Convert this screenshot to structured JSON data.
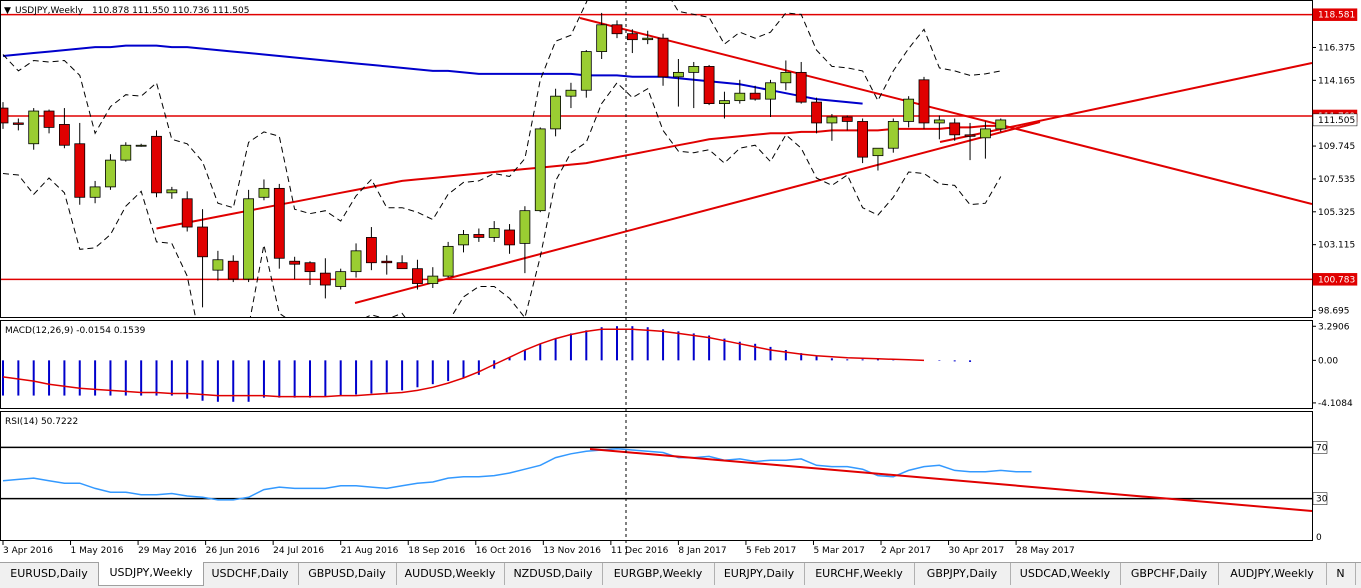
{
  "window": {
    "title": "USDJPY,Weekly",
    "ohlc": "110.878 111.550 110.736 111.505"
  },
  "indicators": {
    "macd_label": "MACD(12,26,9) -0.0154 0.1539",
    "rsi_label": "RSI(14) 50.7222"
  },
  "price_scale": {
    "labels": [
      "116.375",
      "114.165",
      "109.745",
      "107.535",
      "105.325",
      "103.115",
      "98.695"
    ],
    "badges": [
      {
        "text": "118.581",
        "price": 118.581,
        "color": "#e00000"
      },
      {
        "text": "111.769",
        "price": 111.769,
        "color": "#e00000"
      },
      {
        "text": "111.505",
        "price": 111.505,
        "color": "#ffffff"
      },
      {
        "text": "100.783",
        "price": 100.783,
        "color": "#e00000"
      }
    ]
  },
  "macd_scale": [
    "3.2906",
    "0.00",
    "-4.1084"
  ],
  "rsi_scale": [
    "70",
    "30",
    "0"
  ],
  "time_labels": [
    "3 Apr 2016",
    "1 May 2016",
    "29 May 2016",
    "26 Jun 2016",
    "24 Jul 2016",
    "21 Aug 2016",
    "18 Sep 2016",
    "16 Oct 2016",
    "13 Nov 2016",
    "11 Dec 2016",
    "8 Jan 2017",
    "5 Feb 2017",
    "5 Mar 2017",
    "2 Apr 2017",
    "30 Apr 2017",
    "28 May 2017"
  ],
  "tabs": [
    {
      "label": "EURUSD,Daily",
      "active": false
    },
    {
      "label": "USDJPY,Weekly",
      "active": true
    },
    {
      "label": "USDCHF,Daily",
      "active": false
    },
    {
      "label": "GBPUSD,Daily",
      "active": false
    },
    {
      "label": "AUDUSD,Weekly",
      "active": false
    },
    {
      "label": "NZDUSD,Daily",
      "active": false
    },
    {
      "label": "EURGBP,Weekly",
      "active": false
    },
    {
      "label": "EURJPY,Daily",
      "active": false
    },
    {
      "label": "EURCHF,Weekly",
      "active": false
    },
    {
      "label": "GBPJPY,Daily",
      "active": false
    },
    {
      "label": "USDCAD,Weekly",
      "active": false
    },
    {
      "label": "GBPCHF,Daily",
      "active": false
    },
    {
      "label": "AUDJPY,Weekly",
      "active": false
    },
    {
      "label": "N",
      "active": false
    }
  ],
  "colors": {
    "bull": "#9acd32",
    "bear": "#e00000",
    "macd_hist": "#0000cc",
    "signal": "#e00000",
    "rsi": "#3399ff",
    "ma_blue": "#0000cc",
    "ma_red": "#e00000"
  },
  "chart_data": {
    "type": "candlestick",
    "symbol": "USDJPY",
    "timeframe": "Weekly",
    "candles": [
      [
        112.3,
        112.7,
        110.9,
        111.3
      ],
      [
        111.3,
        111.6,
        110.8,
        111.2
      ],
      [
        109.9,
        112.3,
        109.5,
        112.1
      ],
      [
        112.1,
        112.2,
        110.6,
        111.0
      ],
      [
        111.2,
        112.3,
        109.6,
        109.8
      ],
      [
        109.9,
        111.3,
        105.8,
        106.3
      ],
      [
        106.3,
        107.4,
        105.9,
        107.0
      ],
      [
        107.0,
        109.2,
        106.8,
        108.8
      ],
      [
        108.8,
        110.0,
        108.7,
        109.8
      ],
      [
        109.8,
        109.9,
        109.7,
        109.8
      ],
      [
        110.4,
        110.8,
        106.3,
        106.6
      ],
      [
        106.6,
        107.0,
        106.2,
        106.8
      ],
      [
        106.2,
        106.7,
        104.0,
        104.3
      ],
      [
        104.3,
        105.5,
        98.9,
        102.3
      ],
      [
        101.4,
        102.7,
        100.7,
        102.1
      ],
      [
        102.0,
        102.4,
        100.6,
        100.8
      ],
      [
        100.8,
        106.8,
        100.6,
        106.2
      ],
      [
        106.3,
        107.5,
        106.1,
        106.9
      ],
      [
        106.9,
        107.2,
        101.5,
        102.2
      ],
      [
        102.0,
        102.3,
        100.8,
        101.8
      ],
      [
        101.9,
        102.0,
        100.4,
        101.3
      ],
      [
        101.2,
        102.2,
        99.5,
        100.4
      ],
      [
        100.3,
        101.5,
        100.1,
        101.3
      ],
      [
        101.3,
        103.2,
        100.9,
        102.7
      ],
      [
        103.6,
        104.3,
        101.4,
        101.9
      ],
      [
        102.0,
        102.4,
        101.1,
        101.9
      ],
      [
        101.9,
        102.4,
        101.5,
        101.5
      ],
      [
        101.5,
        102.1,
        100.1,
        100.5
      ],
      [
        100.5,
        101.6,
        100.2,
        101.0
      ],
      [
        101.0,
        103.3,
        100.9,
        103.0
      ],
      [
        103.1,
        104.1,
        102.6,
        103.8
      ],
      [
        103.8,
        104.2,
        103.3,
        103.6
      ],
      [
        103.6,
        104.7,
        103.3,
        104.2
      ],
      [
        104.1,
        104.5,
        102.5,
        103.1
      ],
      [
        103.2,
        105.7,
        101.2,
        105.4
      ],
      [
        105.4,
        111.0,
        105.3,
        110.9
      ],
      [
        110.9,
        113.6,
        110.4,
        113.1
      ],
      [
        113.1,
        114.0,
        112.3,
        113.5
      ],
      [
        113.5,
        116.2,
        113.0,
        116.1
      ],
      [
        116.1,
        118.7,
        115.6,
        117.9
      ],
      [
        117.9,
        118.2,
        117.0,
        117.3
      ],
      [
        117.3,
        117.6,
        116.0,
        116.9
      ],
      [
        116.9,
        117.5,
        116.6,
        117.0
      ],
      [
        117.0,
        117.3,
        113.8,
        114.4
      ],
      [
        114.4,
        115.6,
        112.4,
        114.7
      ],
      [
        114.7,
        115.4,
        112.3,
        115.1
      ],
      [
        115.1,
        115.2,
        112.5,
        112.6
      ],
      [
        112.6,
        113.4,
        111.6,
        112.8
      ],
      [
        112.8,
        114.2,
        112.6,
        113.3
      ],
      [
        113.3,
        113.8,
        112.8,
        112.9
      ],
      [
        112.9,
        114.2,
        111.7,
        114.0
      ],
      [
        114.0,
        115.5,
        113.5,
        114.7
      ],
      [
        114.7,
        115.4,
        112.6,
        112.7
      ],
      [
        112.7,
        113.0,
        110.6,
        111.3
      ],
      [
        111.3,
        111.9,
        110.1,
        111.7
      ],
      [
        111.7,
        111.8,
        110.8,
        111.4
      ],
      [
        111.4,
        111.6,
        108.6,
        109.0
      ],
      [
        109.1,
        109.6,
        108.1,
        109.6
      ],
      [
        109.6,
        111.6,
        109.3,
        111.4
      ],
      [
        111.4,
        113.1,
        111.0,
        112.9
      ],
      [
        114.2,
        114.4,
        110.9,
        111.3
      ],
      [
        111.3,
        111.8,
        110.2,
        111.5
      ],
      [
        111.3,
        111.6,
        110.1,
        110.5
      ],
      [
        110.5,
        111.3,
        108.8,
        110.4
      ],
      [
        110.3,
        111.4,
        108.9,
        110.9
      ],
      [
        110.9,
        111.6,
        110.7,
        111.5
      ]
    ],
    "price_range": [
      98.25,
      119.5
    ],
    "macd_hist": [
      -3.4,
      -3.4,
      -3.4,
      -3.4,
      -3.4,
      -3.4,
      -3.4,
      -3.4,
      -3.4,
      -3.4,
      -3.4,
      -3.4,
      -3.7,
      -3.9,
      -4.0,
      -4.0,
      -4.0,
      -3.6,
      -3.6,
      -3.6,
      -3.6,
      -3.5,
      -3.4,
      -3.3,
      -3.2,
      -3.1,
      -2.9,
      -2.6,
      -2.3,
      -2.0,
      -1.7,
      -1.4,
      -0.8,
      0.3,
      1.0,
      1.6,
      2.1,
      2.6,
      2.9,
      3.2,
      3.3,
      3.3,
      3.2,
      3.0,
      2.8,
      2.6,
      2.4,
      2.1,
      1.8,
      1.6,
      1.3,
      1.0,
      0.7,
      0.4,
      0.2,
      0.1,
      0.1,
      0.1,
      0.1,
      0.05,
      0.0,
      -0.05,
      -0.1,
      -0.15
    ],
    "macd_signal": [
      -1.6,
      -1.8,
      -2.0,
      -2.3,
      -2.5,
      -2.7,
      -2.8,
      -2.9,
      -3.0,
      -3.1,
      -3.1,
      -3.2,
      -3.2,
      -3.3,
      -3.4,
      -3.4,
      -3.4,
      -3.4,
      -3.5,
      -3.5,
      -3.5,
      -3.5,
      -3.4,
      -3.4,
      -3.3,
      -3.2,
      -3.1,
      -2.9,
      -2.6,
      -2.2,
      -1.7,
      -1.1,
      -0.4,
      0.3,
      1.0,
      1.6,
      2.1,
      2.5,
      2.8,
      3.0,
      3.0,
      3.0,
      2.9,
      2.8,
      2.6,
      2.4,
      2.2,
      1.9,
      1.6,
      1.3,
      1.0,
      0.8,
      0.6,
      0.45,
      0.35,
      0.25,
      0.2,
      0.15,
      0.1,
      0.05,
      0.0
    ],
    "macd_range": [
      -4.6,
      3.8
    ],
    "rsi": [
      44,
      45,
      46,
      44,
      42,
      42,
      38,
      35,
      35,
      33,
      33,
      34,
      32,
      31,
      29,
      29,
      31,
      37,
      39,
      38,
      38,
      38,
      40,
      40,
      39,
      38,
      40,
      42,
      43,
      46,
      47,
      47,
      48,
      50,
      53,
      56,
      62,
      65,
      67,
      68,
      69,
      68,
      67,
      66,
      62,
      62,
      63,
      60,
      61,
      59,
      60,
      60,
      61,
      56,
      55,
      55,
      53,
      48,
      47,
      52,
      55,
      56,
      52,
      51,
      51,
      52,
      51,
      51
    ],
    "rsi_levels": [
      70,
      30
    ],
    "overlays": {
      "ma_blue": [
        115.8,
        115.9,
        116.0,
        116.1,
        116.2,
        116.3,
        116.4,
        116.4,
        116.5,
        116.5,
        116.5,
        116.4,
        116.4,
        116.3,
        116.2,
        116.1,
        116.0,
        115.9,
        115.8,
        115.7,
        115.6,
        115.5,
        115.4,
        115.3,
        115.2,
        115.1,
        115.0,
        114.9,
        114.8,
        114.8,
        114.7,
        114.6,
        114.6,
        114.6,
        114.6,
        114.6,
        114.6,
        114.6,
        114.5,
        114.5,
        114.5,
        114.4,
        114.4,
        114.4,
        114.3,
        114.2,
        114.1,
        114.0,
        113.9,
        113.7,
        113.5,
        113.3,
        113.1,
        112.9,
        112.8,
        112.7,
        112.6
      ],
      "ma_red": [
        104.2,
        104.4,
        104.6,
        104.8,
        105.0,
        105.2,
        105.4,
        105.6,
        105.8,
        106.0,
        106.2,
        106.4,
        106.6,
        106.8,
        107.0,
        107.2,
        107.4,
        107.5,
        107.6,
        107.7,
        107.8,
        107.9,
        108.0,
        108.1,
        108.2,
        108.3,
        108.4,
        108.5,
        108.6,
        108.8,
        109.0,
        109.2,
        109.4,
        109.6,
        109.8,
        110.0,
        110.2,
        110.3,
        110.4,
        110.5,
        110.6,
        110.6,
        110.7,
        110.7,
        110.8,
        110.8,
        110.8,
        110.8,
        110.9,
        110.9,
        110.9,
        110.9,
        111.0,
        111.0,
        111.1,
        111.1
      ],
      "horizontal_levels": [
        118.581,
        111.769,
        100.783
      ]
    }
  }
}
